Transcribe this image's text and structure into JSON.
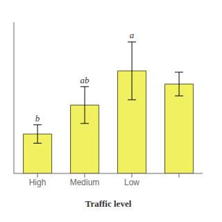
{
  "chart_data": {
    "type": "bar",
    "categories": [
      "High",
      "Medium",
      "Low",
      null
    ],
    "values": [
      0.3,
      0.52,
      0.78,
      0.68
    ],
    "errors": [
      0.07,
      0.14,
      0.22,
      0.09
    ],
    "annotations": [
      "b",
      "ab",
      "a",
      null
    ],
    "xlabel": "Traffic level",
    "color": "#f0f060",
    "ylim": [
      0,
      1.15
    ],
    "tick_labels": "x",
    "grid": false
  }
}
